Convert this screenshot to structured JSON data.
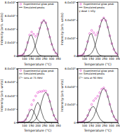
{
  "chart_data": [
    {
      "type": "line",
      "x_label": "Temperature (°C)",
      "y_label": "Intensity (arb. units)",
      "xlim": [
        50,
        350
      ],
      "xticks": [
        100,
        150,
        200,
        250,
        300,
        350
      ],
      "ylim": [
        0,
        80000
      ],
      "yticks": [
        0,
        {
          "value": 20000,
          "label": "2.0x10⁴"
        },
        {
          "value": 40000,
          "label": "4.0x10⁴"
        },
        {
          "value": 60000,
          "label": "6.0x10⁴"
        },
        {
          "value": 80000,
          "label": "8.0x10⁴"
        }
      ],
      "legend": "upper left",
      "x": [
        50,
        65,
        80,
        95,
        110,
        125,
        140,
        155,
        170,
        185,
        200,
        215,
        230,
        245,
        260,
        275,
        290,
        305,
        320,
        335,
        350
      ],
      "series": [
        {
          "name": "Experimental glow peak",
          "type": "scatter",
          "marker": "circle",
          "color": "#e03cc8",
          "values": [
            10,
            100,
            650,
            2900,
            9100,
            20000,
            31200,
            35600,
            32300,
            29200,
            32400,
            41100,
            49600,
            53000,
            49400,
            40000,
            28100,
            17200,
            9100,
            4200,
            1700
          ]
        },
        {
          "name": "Simulated peaks",
          "type": "line",
          "color": "#000000",
          "values": [
            10,
            100,
            640,
            2850,
            8900,
            19400,
            29500,
            31400,
            23200,
            12000,
            4300,
            1100,
            190,
            30,
            0,
            0,
            0,
            0,
            0,
            0,
            0
          ]
        },
        {
          "type": "line",
          "color": "#000000",
          "values": [
            0,
            0,
            10,
            50,
            180,
            590,
            1690,
            4200,
            9100,
            17200,
            28100,
            40000,
            49400,
            53000,
            49400,
            40000,
            28100,
            17200,
            9100,
            4200,
            1690
          ]
        }
      ]
    },
    {
      "type": "line",
      "x_label": "Temperature (°C)",
      "y_label": "Intensity (arb. units)",
      "annotation": "γ dose 1 kGy",
      "xlim": [
        50,
        350
      ],
      "xticks": [
        100,
        150,
        200,
        250,
        300,
        350
      ],
      "ylim": [
        0,
        60000
      ],
      "yticks": [
        0,
        {
          "value": 20000,
          "label": "2.0x10⁴"
        },
        {
          "value": 40000,
          "label": "4.0x10⁴"
        },
        {
          "value": 60000,
          "label": "6.0x10⁴"
        }
      ],
      "legend": "upper left",
      "x": [
        50,
        65,
        80,
        95,
        110,
        125,
        140,
        155,
        170,
        185,
        200,
        215,
        230,
        245,
        260,
        275,
        290,
        305,
        320,
        335,
        350
      ],
      "series": [
        {
          "name": "Experimental glow peak",
          "type": "scatter",
          "marker": "circle",
          "color": "#e03cc8",
          "values": [
            8,
            80,
            518,
            2320,
            7260,
            15970,
            24950,
            28460,
            25880,
            23360,
            25920,
            32880,
            39670,
            42420,
            39520,
            32000,
            22480,
            13760,
            7280,
            3360,
            1350
          ]
        },
        {
          "name": "Simulated peaks",
          "type": "line",
          "color": "#000000",
          "values": [
            8,
            80,
            510,
            2280,
            7120,
            15500,
            23600,
            25100,
            18600,
            9600,
            3440,
            880,
            150,
            24,
            0,
            0,
            0,
            0,
            0,
            0,
            0
          ]
        },
        {
          "type": "line",
          "color": "#000000",
          "values": [
            0,
            0,
            8,
            40,
            144,
            472,
            1350,
            3360,
            7280,
            13760,
            22480,
            32000,
            39520,
            42400,
            39520,
            32000,
            22480,
            13760,
            7280,
            3360,
            1350
          ]
        }
      ]
    },
    {
      "type": "line",
      "x_label": "Temperature (°C)",
      "y_label": "Intensity (arb. units)",
      "annotation": "C⁵⁺ ions at 75 MeV",
      "xlim": [
        50,
        350
      ],
      "xticks": [
        100,
        150,
        200,
        250,
        300,
        350
      ],
      "ylim": [
        0,
        80000
      ],
      "yticks": [
        0,
        {
          "value": 20000,
          "label": "2.0x10⁴"
        },
        {
          "value": 40000,
          "label": "4.0x10⁴"
        },
        {
          "value": 60000,
          "label": "6.0x10⁴"
        },
        {
          "value": 80000,
          "label": "8.0x10⁴"
        }
      ],
      "legend": "upper left",
      "x": [
        50,
        65,
        80,
        95,
        110,
        125,
        140,
        155,
        170,
        185,
        200,
        215,
        230,
        245,
        260,
        275,
        290,
        305,
        320,
        335,
        350
      ],
      "series": [
        {
          "name": "Experimental glow peak",
          "type": "scatter",
          "marker": "circle",
          "color": "#e03cc8",
          "values": [
            0,
            30,
            220,
            1120,
            4000,
            10100,
            18500,
            26400,
            33000,
            39300,
            44300,
            45800,
            46000,
            47000,
            46700,
            41300,
            31200,
            19700,
            10400,
            4500,
            1650
          ]
        },
        {
          "name": "Simulated peaks",
          "type": "line",
          "color": "#000000",
          "values": [
            0,
            30,
            220,
            1120,
            3960,
            9740,
            16700,
            20000,
            16700,
            9740,
            3960,
            1120,
            220,
            30,
            0,
            0,
            0,
            0,
            0,
            0,
            0
          ]
        },
        {
          "type": "line",
          "color": "#000000",
          "values": [
            0,
            0,
            0,
            0,
            45,
            330,
            1680,
            5940,
            14600,
            25000,
            30000,
            25000,
            14600,
            5940,
            1680,
            330,
            45,
            0,
            0,
            0,
            0
          ]
        },
        {
          "type": "line",
          "color": "#000000",
          "values": [
            0,
            0,
            0,
            0,
            5,
            26,
            125,
            500,
            1650,
            4520,
            10350,
            19700,
            31200,
            41000,
            45000,
            41000,
            31200,
            19700,
            10350,
            4520,
            1650
          ]
        }
      ]
    },
    {
      "type": "line",
      "x_label": "Temperature (°C)",
      "y_label": "Intensity (arb. units)",
      "annotation": "C⁵⁺ ions at 90 MeV",
      "xlim": [
        50,
        350
      ],
      "xticks": [
        100,
        150,
        200,
        250,
        300,
        350
      ],
      "ylim": [
        0,
        60000
      ],
      "yticks": [
        0,
        {
          "value": 20000,
          "label": "2.0x10⁴"
        },
        {
          "value": 40000,
          "label": "4.0x10⁴"
        },
        {
          "value": 60000,
          "label": "6.0x10⁴"
        }
      ],
      "legend": "upper left",
      "x": [
        50,
        65,
        80,
        95,
        110,
        125,
        140,
        155,
        170,
        185,
        200,
        215,
        230,
        245,
        260,
        275,
        290,
        305,
        320,
        335,
        350
      ],
      "series": [
        {
          "name": "Experimental glow peak",
          "type": "scatter",
          "marker": "circle",
          "color": "#e03cc8",
          "values": [
            12,
            69,
            334,
            1226,
            3479,
            7823,
            13910,
            20010,
            24270,
            26730,
            29260,
            33160,
            37140,
            38510,
            35540,
            28702,
            20153,
            12330,
            6520,
            3010,
            1210
          ]
        },
        {
          "name": "Simulated peaks",
          "type": "line",
          "color": "#000000",
          "values": [
            12,
            69,
            327,
            1190,
            3350,
            7400,
            12700,
            17000,
            17750,
            14400,
            9110,
            4480,
            1720,
            510,
            120,
            22,
            3,
            0,
            0,
            0,
            0
          ]
        },
        {
          "type": "line",
          "color": "#000000",
          "values": [
            0,
            0,
            7,
            36,
            129,
            423,
            1210,
            3010,
            6520,
            12330,
            20150,
            28680,
            35420,
            38000,
            35420,
            28680,
            20150,
            12330,
            6520,
            3010,
            1210
          ]
        }
      ]
    }
  ]
}
